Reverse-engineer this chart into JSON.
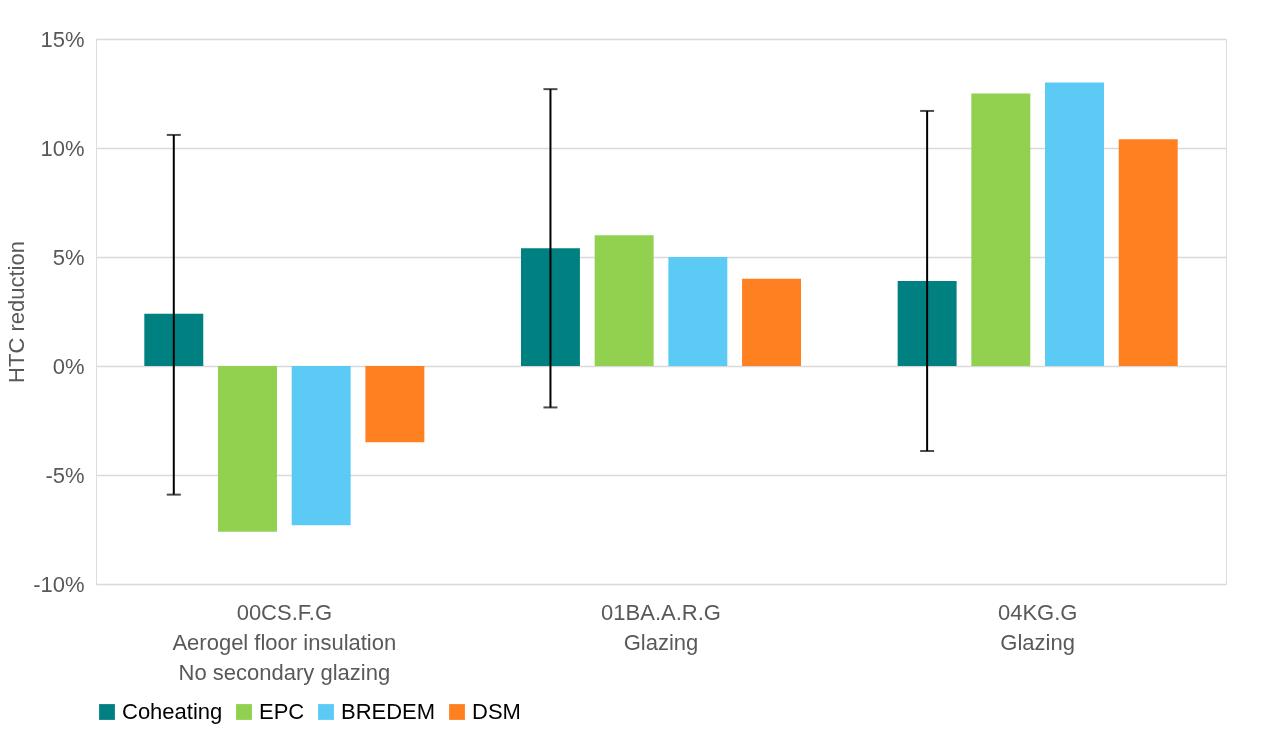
{
  "chart_data": {
    "type": "bar",
    "ylabel": "HTC reduction",
    "categories": [
      "00CS.F.G\nAerogel floor insulation\nNo secondary glazing",
      "01BA.A.R.G\nGlazing",
      "04KG.G\nGlazing"
    ],
    "series": [
      {
        "name": "Coheating",
        "color": "#008080",
        "values": [
          2.4,
          5.4,
          3.9
        ],
        "errors": [
          [
            -5.9,
            10.6
          ],
          [
            -1.9,
            12.7
          ],
          [
            -3.9,
            11.7
          ]
        ]
      },
      {
        "name": "EPC",
        "color": "#92d050",
        "values": [
          -7.6,
          6.0,
          12.5
        ]
      },
      {
        "name": "BREDEM",
        "color": "#5bcbf5",
        "values": [
          -7.3,
          5.0,
          13.0
        ]
      },
      {
        "name": "DSM",
        "color": "#ff8021",
        "values": [
          -3.5,
          4.0,
          10.4
        ]
      }
    ],
    "ylim": [
      -10,
      15
    ],
    "yticks": [
      {
        "value": -10,
        "label": "-10%"
      },
      {
        "value": -5,
        "label": "-5%"
      },
      {
        "value": 0,
        "label": "0%"
      },
      {
        "value": 5,
        "label": "5%"
      },
      {
        "value": 10,
        "label": "10%"
      },
      {
        "value": 15,
        "label": "15%"
      }
    ],
    "grid": "y",
    "legend": "bottom"
  }
}
